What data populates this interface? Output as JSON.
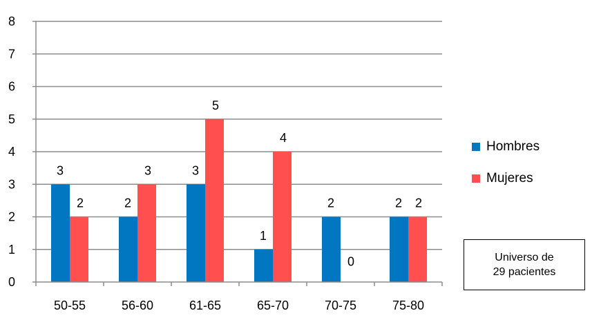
{
  "chart_data": {
    "type": "bar",
    "categories": [
      "50-55",
      "56-60",
      "61-65",
      "65-70",
      "70-75",
      "75-80"
    ],
    "series": [
      {
        "name": "Hombres",
        "values": [
          3,
          2,
          3,
          1,
          2,
          2
        ],
        "color": "#0077C0"
      },
      {
        "name": "Mujeres",
        "values": [
          2,
          3,
          5,
          4,
          0,
          2
        ],
        "color": "#FF4F4F"
      }
    ],
    "ylim": [
      0,
      8
    ],
    "yticks": [
      "0",
      "1",
      "2",
      "3",
      "4",
      "5",
      "6",
      "7",
      "8"
    ],
    "grid": true,
    "legend_position": "right",
    "title": "",
    "xlabel": "",
    "ylabel": ""
  },
  "note": {
    "line1": "Universo de",
    "line2": "29 pacientes"
  }
}
